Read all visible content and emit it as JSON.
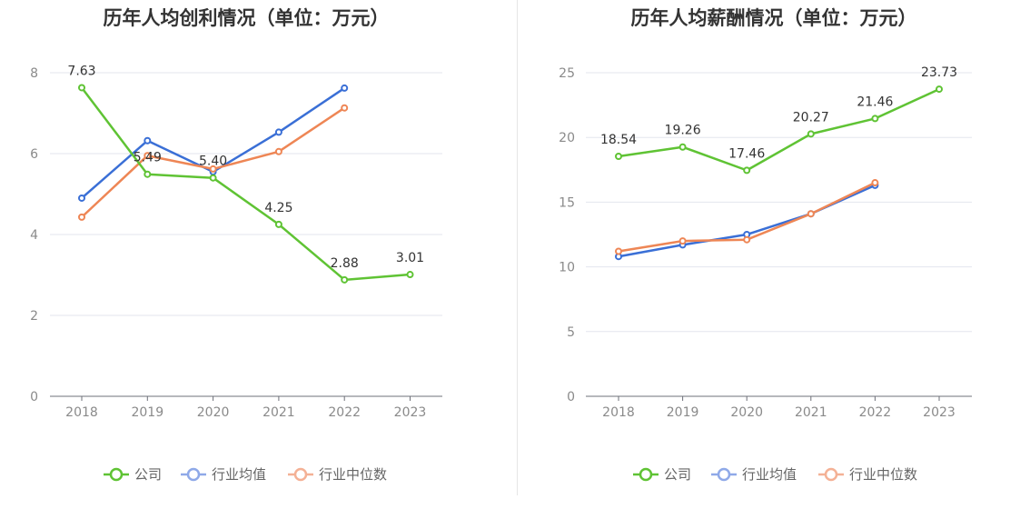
{
  "chart_data": [
    {
      "type": "line",
      "title": "历年人均创利情况（单位：万元）",
      "xlabel": "",
      "ylabel": "",
      "categories": [
        "2018",
        "2019",
        "2020",
        "2021",
        "2022",
        "2023"
      ],
      "ylim": [
        0,
        8
      ],
      "yticks": [
        "0",
        "2",
        "4",
        "6",
        "8"
      ],
      "grid": true,
      "legend_position": "bottom",
      "series": [
        {
          "name": "公司",
          "color": "#5fc334",
          "values": [
            7.63,
            5.49,
            5.4,
            4.25,
            2.88,
            3.01
          ],
          "labels": [
            "7.63",
            "5.49",
            "5.40",
            "4.25",
            "2.88",
            "3.01"
          ]
        },
        {
          "name": "行业均值",
          "color": "#3a6fd6",
          "values": [
            4.9,
            6.32,
            5.55,
            6.53,
            7.62,
            null
          ]
        },
        {
          "name": "行业中位数",
          "color": "#ee8655",
          "values": [
            4.43,
            5.95,
            5.62,
            6.05,
            7.13,
            null
          ]
        }
      ]
    },
    {
      "type": "line",
      "title": "历年人均薪酬情况（单位：万元）",
      "xlabel": "",
      "ylabel": "",
      "categories": [
        "2018",
        "2019",
        "2020",
        "2021",
        "2022",
        "2023"
      ],
      "ylim": [
        0,
        25
      ],
      "yticks": [
        "0",
        "5",
        "10",
        "15",
        "20",
        "25"
      ],
      "grid": true,
      "legend_position": "bottom",
      "series": [
        {
          "name": "公司",
          "color": "#5fc334",
          "values": [
            18.54,
            19.26,
            17.46,
            20.27,
            21.46,
            23.73
          ],
          "labels": [
            "18.54",
            "19.26",
            "17.46",
            "20.27",
            "21.46",
            "23.73"
          ]
        },
        {
          "name": "行业均值",
          "color": "#3a6fd6",
          "values": [
            10.8,
            11.7,
            12.5,
            14.1,
            16.3,
            null
          ]
        },
        {
          "name": "行业中位数",
          "color": "#ee8655",
          "values": [
            11.2,
            12.0,
            12.1,
            14.1,
            16.5,
            null
          ]
        }
      ]
    }
  ]
}
